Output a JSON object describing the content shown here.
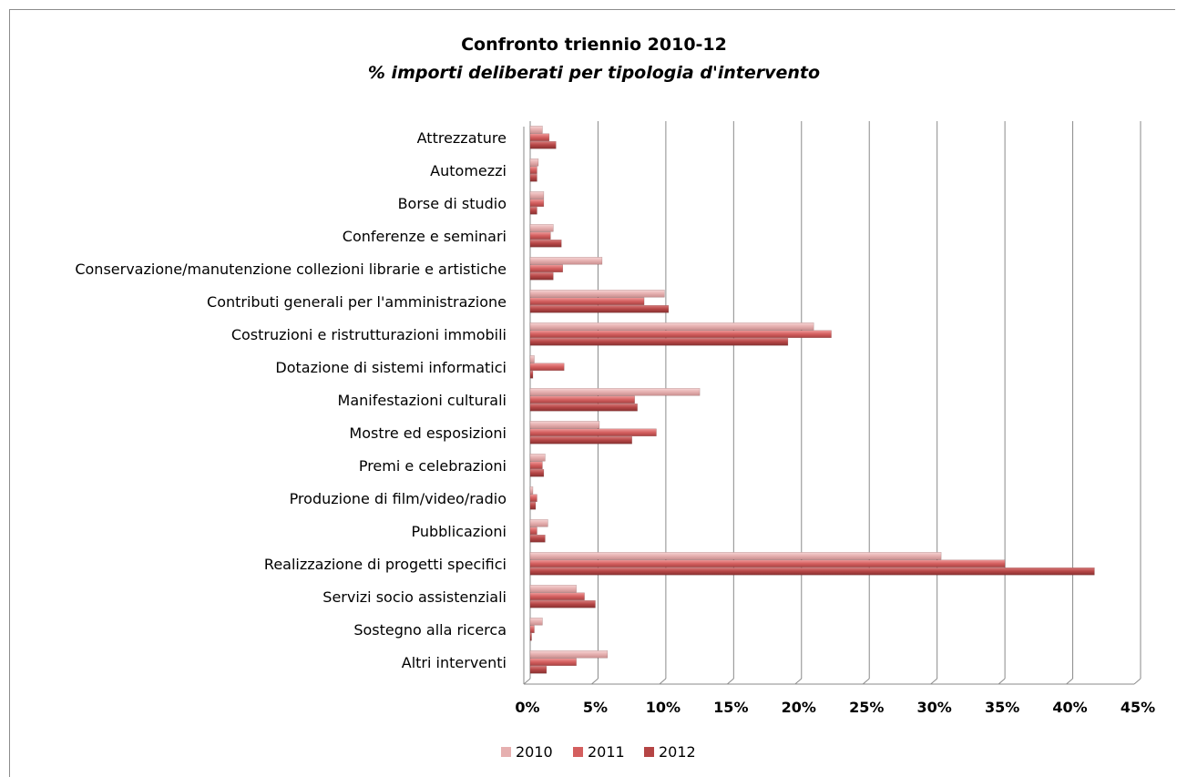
{
  "chart_data": {
    "type": "bar",
    "orientation": "horizontal",
    "title": "Confronto triennio 2010-12",
    "subtitle": "% importi deliberati per tipologia d'intervento",
    "xlim": [
      0,
      45
    ],
    "x_ticks": [
      "0%",
      "5%",
      "10%",
      "15%",
      "20%",
      "25%",
      "30%",
      "35%",
      "40%",
      "45%"
    ],
    "grid": true,
    "legend_position": "bottom",
    "categories": [
      "Attrezzature",
      "Automezzi",
      "Borse di studio",
      "Conferenze e seminari",
      "Conservazione/manutenzione collezioni librarie e artistiche",
      "Contributi generali per l'amministrazione",
      "Costruzioni e ristrutturazioni immobili",
      "Dotazione di sistemi informatici",
      "Manifestazioni culturali",
      "Mostre ed esposizioni",
      "Premi e celebrazioni",
      "Produzione di film/video/radio",
      "Pubblicazioni",
      "Realizzazione di progetti specifici",
      "Servizi socio assistenziali",
      "Sostegno alla ricerca",
      "Altri interventi"
    ],
    "series": [
      {
        "name": "2010",
        "color": "#e6b0b0",
        "values": [
          0.9,
          0.6,
          1.0,
          1.7,
          5.3,
          9.9,
          20.9,
          0.3,
          12.5,
          5.1,
          1.1,
          0.2,
          1.3,
          30.3,
          3.4,
          0.9,
          5.7
        ]
      },
      {
        "name": "2011",
        "color": "#d45f5f",
        "values": [
          1.4,
          0.5,
          1.0,
          1.5,
          2.4,
          8.4,
          22.2,
          2.5,
          7.7,
          9.3,
          0.9,
          0.5,
          0.5,
          35.0,
          4.0,
          0.3,
          3.4
        ]
      },
      {
        "name": "2012",
        "color": "#b54545",
        "values": [
          1.9,
          0.5,
          0.5,
          2.3,
          1.7,
          10.2,
          19.0,
          0.2,
          7.9,
          7.5,
          1.0,
          0.4,
          1.1,
          41.6,
          4.8,
          0.1,
          1.2
        ]
      }
    ]
  }
}
